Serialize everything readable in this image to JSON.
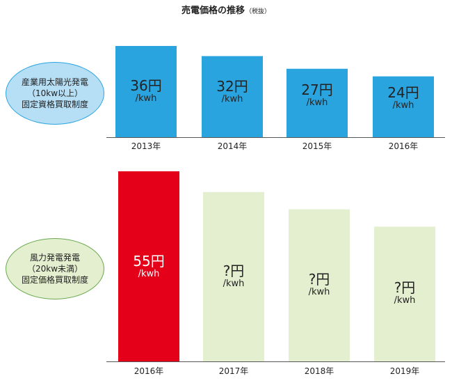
{
  "title": {
    "main": "売電価格の推移",
    "note": "（税抜）"
  },
  "panels": [
    {
      "label_lines": [
        "産業用太陽光発電",
        "（10kw以上）",
        "固定資格買取制度"
      ]
    },
    {
      "label_lines": [
        "風力発電発電",
        "（20kw未満）",
        "固定価格買取制度"
      ]
    }
  ],
  "colors": {
    "solar": "#2aa4df",
    "wind_current": "#e5001a",
    "wind_future": "#e3efcf"
  },
  "chart_data": [
    {
      "type": "bar",
      "categories": [
        "2013年",
        "2014年",
        "2015年",
        "2016年"
      ],
      "values": [
        36,
        32,
        27,
        24
      ],
      "value_labels": [
        "36円",
        "32円",
        "27円",
        "24円"
      ],
      "unit_label": "/kwh",
      "bar_colors": [
        "#2aa4df",
        "#2aa4df",
        "#2aa4df",
        "#2aa4df"
      ],
      "ylim": [
        0,
        36
      ],
      "grid": false
    },
    {
      "type": "bar",
      "categories": [
        "2016年",
        "2017年",
        "2018年",
        "2019年"
      ],
      "values": [
        55,
        49,
        44,
        39
      ],
      "value_labels": [
        "55円",
        "?円",
        "?円",
        "?円"
      ],
      "unit_label": "/kwh",
      "bar_colors": [
        "#e5001a",
        "#e3efcf",
        "#e3efcf",
        "#e3efcf"
      ],
      "ylim": [
        0,
        55
      ],
      "grid": false
    }
  ]
}
